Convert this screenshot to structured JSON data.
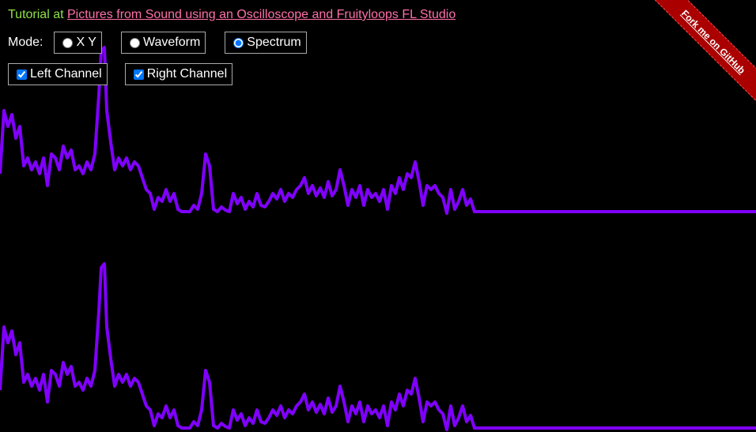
{
  "header": {
    "prefix": "Tutorial at",
    "link": "Pictures from Sound using an Oscilloscope and Fruityloops FL Studio"
  },
  "mode": {
    "label": "Mode:",
    "options": [
      "X Y",
      "Waveform",
      "Spectrum"
    ],
    "selected": 2
  },
  "channels": [
    {
      "label": "Left Channel",
      "checked": true
    },
    {
      "label": "Right Channel",
      "checked": true
    }
  ],
  "ribbon": "Fork me on GitHub"
}
